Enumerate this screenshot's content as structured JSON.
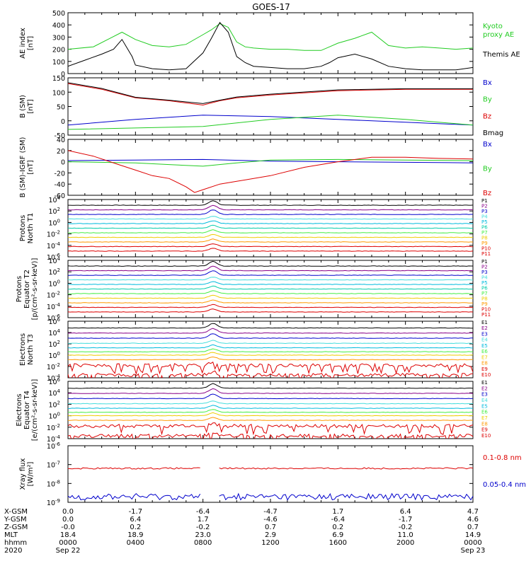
{
  "title": "GOES-17",
  "colors": {
    "black": "#000000",
    "green": "#22cc22",
    "lime": "#44ee44",
    "blue": "#0000cc",
    "red": "#dd0000",
    "purple": "#880088",
    "cyan": "#00bbdd",
    "teal": "#00ccaa",
    "aqua": "#44dddd",
    "yellow": "#dddd00",
    "orange": "#ff9900",
    "gold": "#eecc00"
  },
  "footer": {
    "row_labels": [
      "X-GSM",
      "Y-GSM",
      "Z-GSM",
      "MLT",
      "hhmm",
      "2020"
    ],
    "columns": [
      [
        "0.0",
        "0.0",
        "-0.0",
        "18.4",
        "0000",
        "Sep 22"
      ],
      [
        "-1.7",
        "6.4",
        "0.2",
        "18.9",
        "0400",
        ""
      ],
      [
        "-6.4",
        "1.7",
        "-0.2",
        "23.0",
        "0800",
        ""
      ],
      [
        "-4.7",
        "-4.6",
        "0.7",
        "2.9",
        "1200",
        ""
      ],
      [
        "1.7",
        "-6.4",
        "0.2",
        "6.9",
        "1600",
        ""
      ],
      [
        "6.4",
        "-1.7",
        "-0.2",
        "11.0",
        "2000",
        ""
      ],
      [
        "4.7",
        "4.6",
        "0.7",
        "14.9",
        "0000",
        "Sep 23"
      ]
    ]
  },
  "chart_data": [
    {
      "type": "line",
      "ylabel": "AE index\n[nT]",
      "ylim": [
        0,
        500
      ],
      "yticks": [
        "0",
        "100",
        "200",
        "300",
        "400",
        "500"
      ],
      "x_hours": [
        0,
        24
      ],
      "series": [
        {
          "name": "Kyoto\nproxy AE",
          "color": "green",
          "x": [
            0,
            1.5,
            2.5,
            3.2,
            4,
            5,
            6,
            7,
            8,
            8.5,
            9,
            9.5,
            10,
            10.5,
            11,
            12,
            13,
            14,
            15,
            15.5,
            16,
            17,
            18,
            19,
            20,
            21,
            22,
            23,
            24
          ],
          "y": [
            200,
            220,
            290,
            340,
            280,
            230,
            220,
            240,
            320,
            360,
            410,
            380,
            260,
            220,
            210,
            200,
            200,
            190,
            190,
            220,
            250,
            290,
            340,
            230,
            210,
            220,
            210,
            200,
            210
          ]
        },
        {
          "name": "Themis AE",
          "color": "black",
          "x": [
            0,
            1,
            2,
            2.7,
            3.2,
            3.8,
            4,
            5,
            6,
            7,
            8,
            8.5,
            9,
            9.5,
            10,
            10.5,
            11,
            12,
            13,
            14,
            15,
            15.5,
            16,
            17,
            18,
            19,
            20,
            21,
            22,
            23,
            24
          ],
          "y": [
            60,
            110,
            160,
            200,
            280,
            140,
            70,
            40,
            30,
            40,
            170,
            290,
            420,
            340,
            140,
            90,
            60,
            50,
            40,
            40,
            60,
            90,
            130,
            160,
            120,
            60,
            40,
            30,
            30,
            30,
            50
          ]
        }
      ]
    },
    {
      "type": "line",
      "ylabel": "B (SM)\n[nT]",
      "ylim": [
        -50,
        150
      ],
      "yticks": [
        "-50",
        "0",
        "50",
        "100",
        "150"
      ],
      "x_hours": [
        0,
        24
      ],
      "series": [
        {
          "name": "Bx",
          "color": "blue",
          "x": [
            0,
            4,
            8,
            12,
            16,
            20,
            24
          ],
          "y": [
            -15,
            5,
            20,
            15,
            5,
            -5,
            -15
          ]
        },
        {
          "name": "By",
          "color": "green",
          "x": [
            0,
            4,
            8,
            12,
            16,
            20,
            24
          ],
          "y": [
            -30,
            -25,
            -20,
            5,
            20,
            5,
            -15
          ]
        },
        {
          "name": "Bz",
          "color": "red",
          "x": [
            0,
            2,
            4,
            6,
            8,
            9,
            10,
            12,
            16,
            20,
            24
          ],
          "y": [
            130,
            110,
            80,
            70,
            55,
            70,
            80,
            90,
            105,
            110,
            110
          ]
        },
        {
          "name": "Bmag",
          "color": "black",
          "x": [
            0,
            2,
            4,
            6,
            8,
            9,
            10,
            12,
            16,
            20,
            24
          ],
          "y": [
            133,
            113,
            82,
            72,
            60,
            72,
            83,
            93,
            108,
            112,
            112
          ]
        }
      ]
    },
    {
      "type": "line",
      "ylabel": "B (SM)-IGRF (SM)\n[nT]",
      "ylim": [
        -60,
        40
      ],
      "yticks": [
        "-60",
        "-40",
        "-20",
        "0",
        "20",
        "40"
      ],
      "x_hours": [
        0,
        24
      ],
      "series": [
        {
          "name": "Bx",
          "color": "blue",
          "x": [
            0,
            4,
            8,
            12,
            16,
            20,
            24
          ],
          "y": [
            2,
            3,
            4,
            1,
            0,
            -1,
            -2
          ]
        },
        {
          "name": "By",
          "color": "green",
          "x": [
            0,
            4,
            6,
            8,
            10,
            12,
            16,
            20,
            24
          ],
          "y": [
            0,
            -2,
            -5,
            -8,
            -2,
            3,
            4,
            3,
            2
          ]
        },
        {
          "name": "Bz",
          "color": "red",
          "x": [
            0,
            1.5,
            2.5,
            3,
            4,
            5,
            6,
            7,
            7.5,
            8,
            9,
            10,
            12,
            14,
            16,
            18,
            20,
            22,
            24
          ],
          "y": [
            20,
            10,
            0,
            -5,
            -15,
            -25,
            -30,
            -45,
            -55,
            -50,
            -40,
            -35,
            -25,
            -10,
            0,
            8,
            8,
            6,
            5
          ]
        }
      ]
    },
    {
      "type": "line",
      "ylabel": "Protons\nNorth T1",
      "ylim": [
        -6,
        4
      ],
      "log": true,
      "yticks": [
        "10^-6",
        "10^-4",
        "10^-2",
        "10^0",
        "10^2",
        "10^4"
      ],
      "x_hours": [
        0,
        24
      ],
      "series": [
        {
          "name": "P1",
          "color": "black",
          "level": 3.0
        },
        {
          "name": "P2",
          "color": "purple",
          "level": 2.2
        },
        {
          "name": "P3",
          "color": "blue",
          "level": 1.4
        },
        {
          "name": "P4",
          "color": "aqua",
          "level": 0.6
        },
        {
          "name": "P5",
          "color": "cyan",
          "level": -0.2
        },
        {
          "name": "P6",
          "color": "teal",
          "level": -1.0
        },
        {
          "name": "P7",
          "color": "lime",
          "level": -1.8
        },
        {
          "name": "P8",
          "color": "gold",
          "level": -2.6
        },
        {
          "name": "P9",
          "color": "orange",
          "level": -3.4
        },
        {
          "name": "P10",
          "color": "red",
          "level": -4.2
        },
        {
          "name": "P11",
          "color": "red",
          "level": -5.0
        }
      ]
    },
    {
      "type": "line",
      "ylabel": "Protons\nEquator T2\n[p/(cm²-s-sr-keV)]",
      "ylim": [
        -6,
        4
      ],
      "log": true,
      "yticks": [
        "10^-6",
        "10^-4",
        "10^-2",
        "10^0",
        "10^2",
        "10^4"
      ],
      "x_hours": [
        0,
        24
      ],
      "series": [
        {
          "name": "P1",
          "color": "black",
          "level": 3.0
        },
        {
          "name": "P2",
          "color": "purple",
          "level": 2.2
        },
        {
          "name": "P3",
          "color": "blue",
          "level": 1.4
        },
        {
          "name": "P4",
          "color": "aqua",
          "level": 0.6
        },
        {
          "name": "P5",
          "color": "cyan",
          "level": -0.2
        },
        {
          "name": "P6",
          "color": "teal",
          "level": -1.0
        },
        {
          "name": "P7",
          "color": "lime",
          "level": -1.8
        },
        {
          "name": "P8",
          "color": "gold",
          "level": -2.6
        },
        {
          "name": "P9",
          "color": "orange",
          "level": -3.4
        },
        {
          "name": "P10",
          "color": "red",
          "level": -4.2
        },
        {
          "name": "P11",
          "color": "red",
          "level": -5.0
        }
      ]
    },
    {
      "type": "line",
      "ylabel": "Electrons\nNorth T3",
      "ylim": [
        -4,
        6
      ],
      "log": true,
      "yticks": [
        "10^-4",
        "10^-2",
        "10^0",
        "10^2",
        "10^4",
        "10^6"
      ],
      "x_hours": [
        0,
        24
      ],
      "series": [
        {
          "name": "E1",
          "color": "black",
          "level": 4.8
        },
        {
          "name": "E2",
          "color": "purple",
          "level": 3.9
        },
        {
          "name": "E3",
          "color": "blue",
          "level": 3.0
        },
        {
          "name": "E4",
          "color": "aqua",
          "level": 2.1
        },
        {
          "name": "E5",
          "color": "cyan",
          "level": 1.3
        },
        {
          "name": "E6",
          "color": "lime",
          "level": 0.6
        },
        {
          "name": "E7",
          "color": "gold",
          "level": 0.0
        },
        {
          "name": "E8",
          "color": "orange",
          "level": -0.8
        },
        {
          "name": "E9",
          "color": "red",
          "level": -1.8
        },
        {
          "name": "E10",
          "color": "red",
          "level": -3.5
        }
      ]
    },
    {
      "type": "line",
      "ylabel": "Electrons\nEquator T4\n[e/(cm²-s-sr-keV)]",
      "ylim": [
        -4,
        6
      ],
      "log": true,
      "yticks": [
        "10^-4",
        "10^-2",
        "10^0",
        "10^2",
        "10^4",
        "10^6"
      ],
      "x_hours": [
        0,
        24
      ],
      "series": [
        {
          "name": "E1",
          "color": "black",
          "level": 4.8
        },
        {
          "name": "E2",
          "color": "purple",
          "level": 3.9
        },
        {
          "name": "E3",
          "color": "blue",
          "level": 3.0
        },
        {
          "name": "E4",
          "color": "aqua",
          "level": 2.1
        },
        {
          "name": "E5",
          "color": "cyan",
          "level": 1.3
        },
        {
          "name": "E6",
          "color": "lime",
          "level": 0.6
        },
        {
          "name": "E7",
          "color": "gold",
          "level": 0.0
        },
        {
          "name": "E8",
          "color": "orange",
          "level": -0.8
        },
        {
          "name": "E9",
          "color": "red",
          "level": -1.8
        },
        {
          "name": "E10",
          "color": "red",
          "level": -3.5
        }
      ]
    },
    {
      "type": "line",
      "ylabel": "Xray flux\n[W/m²]",
      "ylim": [
        -9,
        -6
      ],
      "log": true,
      "yticks": [
        "10^-9",
        "10^-8",
        "10^-7",
        "10^-6"
      ],
      "x_hours": [
        0,
        24
      ],
      "series": [
        {
          "name": "0.1-0.8 nm",
          "color": "red",
          "level": -7.2,
          "gap_hours": [
            7.9,
            8.9
          ]
        },
        {
          "name": "0.05-0.4 nm",
          "color": "blue",
          "level": -8.7,
          "gap_hours": [
            7.9,
            8.9
          ]
        }
      ]
    }
  ]
}
